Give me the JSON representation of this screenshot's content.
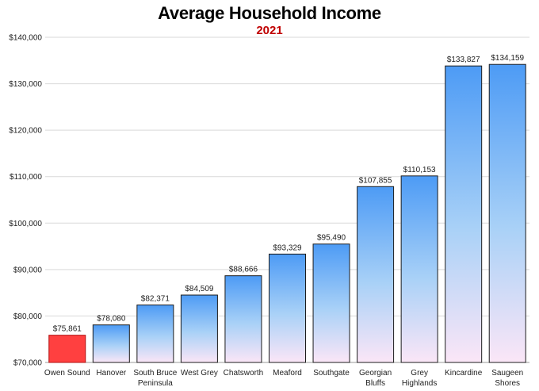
{
  "chart_data": {
    "type": "bar",
    "title": "Average Household Income",
    "subtitle": "2021",
    "xlabel": "",
    "ylabel": "",
    "ylim": [
      70000,
      140000
    ],
    "yticks": [
      70000,
      80000,
      90000,
      100000,
      110000,
      120000,
      130000,
      140000
    ],
    "ytick_labels": [
      "$70,000",
      "$80,000",
      "$90,000",
      "$100,000",
      "$110,000",
      "$120,000",
      "$130,000",
      "$140,000"
    ],
    "grid": true,
    "categories": [
      [
        "Owen Sound"
      ],
      [
        "Hanover"
      ],
      [
        "South Bruce",
        "Peninsula"
      ],
      [
        "West Grey"
      ],
      [
        "Chatsworth"
      ],
      [
        "Meaford"
      ],
      [
        "Southgate"
      ],
      [
        "Georgian",
        "Bluffs"
      ],
      [
        "Grey",
        "Highlands"
      ],
      [
        "Kincardine"
      ],
      [
        "Saugeen",
        "Shores"
      ]
    ],
    "values": [
      75861,
      78080,
      82371,
      84509,
      88666,
      93329,
      95490,
      107855,
      110153,
      133827,
      134159
    ],
    "value_labels": [
      "$75,861",
      "$78,080",
      "$82,371",
      "$84,509",
      "$88,666",
      "$93,329",
      "$95,490",
      "$107,855",
      "$110,153",
      "$133,827",
      "$134,159"
    ],
    "highlight_index": 0,
    "colors": {
      "highlight_fill": "#ff4040",
      "highlight_stroke": "#b01010",
      "bar_top": "#4d9bf5",
      "bar_bottom": "#fbe6f7",
      "bar_stroke": "#1c1c1c",
      "grid": "#d9d9d9",
      "subtitle": "#c00000"
    }
  }
}
